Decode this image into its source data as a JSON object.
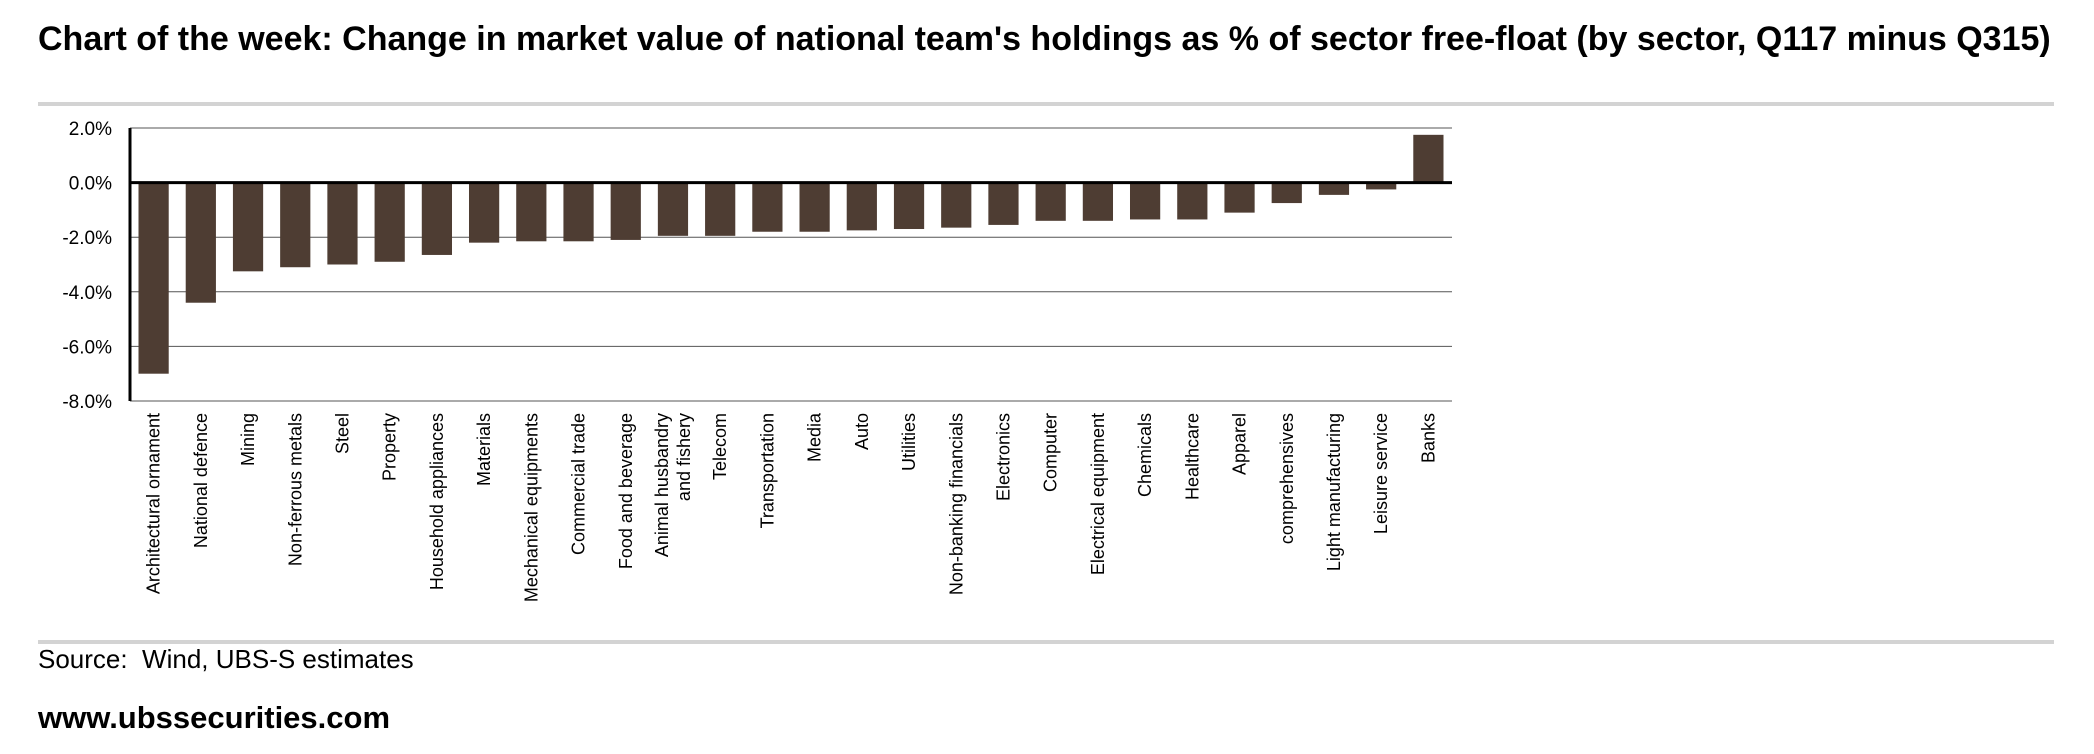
{
  "header": {
    "title": "Chart of the week: Change in market value of national team's holdings as % of sector free-float (by sector, Q117 minus Q315)"
  },
  "footer": {
    "source": "Source:  Wind, UBS-S estimates",
    "website": "www.ubssecurities.com"
  },
  "chart_data": {
    "type": "bar",
    "categories": [
      "Architectural ornament",
      "National defence",
      "Mining",
      "Non-ferrous metals",
      "Steel",
      "Property",
      "Household appliances",
      "Materials",
      "Mechanical equipments",
      "Commercial trade",
      "Food and beverage",
      "Animal husbandry and fishery",
      "Telecom",
      "Transportation",
      "Media",
      "Auto",
      "Utilities",
      "Non-banking financials",
      "Electronics",
      "Computer",
      "Electrical equipment",
      "Chemicals",
      "Healthcare",
      "Apparel",
      "comprehensives",
      "Light manufacturing",
      "Leisure service",
      "Banks"
    ],
    "values": [
      -7.0,
      -4.4,
      -3.25,
      -3.1,
      -3.0,
      -2.9,
      -2.65,
      -2.2,
      -2.15,
      -2.15,
      -2.1,
      -1.95,
      -1.95,
      -1.8,
      -1.8,
      -1.75,
      -1.7,
      -1.65,
      -1.55,
      -1.4,
      -1.4,
      -1.35,
      -1.35,
      -1.1,
      -0.75,
      -0.45,
      -0.25,
      1.75
    ],
    "ylim": [
      -8,
      2
    ],
    "yticks": [
      2,
      0,
      -2,
      -4,
      -6,
      -8
    ],
    "ytick_labels": [
      "2.0%",
      "0.0%",
      "-2.0%",
      "-4.0%",
      "-6.0%",
      "-8.0%"
    ],
    "grid": true,
    "bar_color": "#4e3d33"
  }
}
